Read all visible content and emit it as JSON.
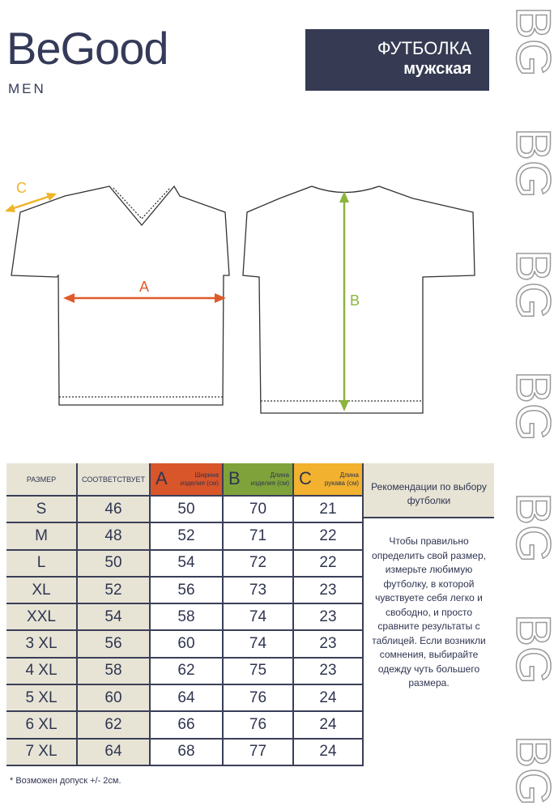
{
  "brand": {
    "name": "BeGood",
    "sub": "MEN"
  },
  "title": {
    "line1": "ФУТБОЛКА",
    "line2": "мужская"
  },
  "watermark": "BG",
  "diagram": {
    "labels": {
      "a": "A",
      "b": "B",
      "c": "C"
    },
    "colors": {
      "a": "#e05a2a",
      "b": "#8cb43c",
      "c": "#f0b428"
    }
  },
  "table": {
    "headers": {
      "size": "РАЗМЕР",
      "corresponds": "СООТВЕТСТВУЕТ",
      "a": {
        "letter": "A",
        "line1": "Ширина",
        "line2": "изделия (см)",
        "color": "#d9552a"
      },
      "b": {
        "letter": "B",
        "line1": "Длина",
        "line2": "изделия (см)",
        "color": "#7fa33a"
      },
      "c": {
        "letter": "C",
        "line1": "Длина",
        "line2": "рукава (см)",
        "color": "#f2b12e"
      }
    },
    "rows": [
      [
        "S",
        "46",
        "50",
        "70",
        "21"
      ],
      [
        "M",
        "48",
        "52",
        "71",
        "22"
      ],
      [
        "L",
        "50",
        "54",
        "72",
        "22"
      ],
      [
        "XL",
        "52",
        "56",
        "73",
        "23"
      ],
      [
        "XXL",
        "54",
        "58",
        "74",
        "23"
      ],
      [
        "3 XL",
        "56",
        "60",
        "74",
        "23"
      ],
      [
        "4 XL",
        "58",
        "62",
        "75",
        "23"
      ],
      [
        "5 XL",
        "60",
        "64",
        "76",
        "24"
      ],
      [
        "6 XL",
        "62",
        "66",
        "76",
        "24"
      ],
      [
        "7 XL",
        "64",
        "68",
        "77",
        "24"
      ]
    ]
  },
  "recommendations": {
    "title": "Рекомендации по выбору футболки",
    "text": "Чтобы правильно определить свой размер, измерьте любимую футболку, в которой чувствуете себя легко и свободно, и просто сравните результаты с таблицей. Если возникли сомнения, выбирайте одежду чуть большего размера."
  },
  "footnote": "* Возможен допуск +/- 2см."
}
